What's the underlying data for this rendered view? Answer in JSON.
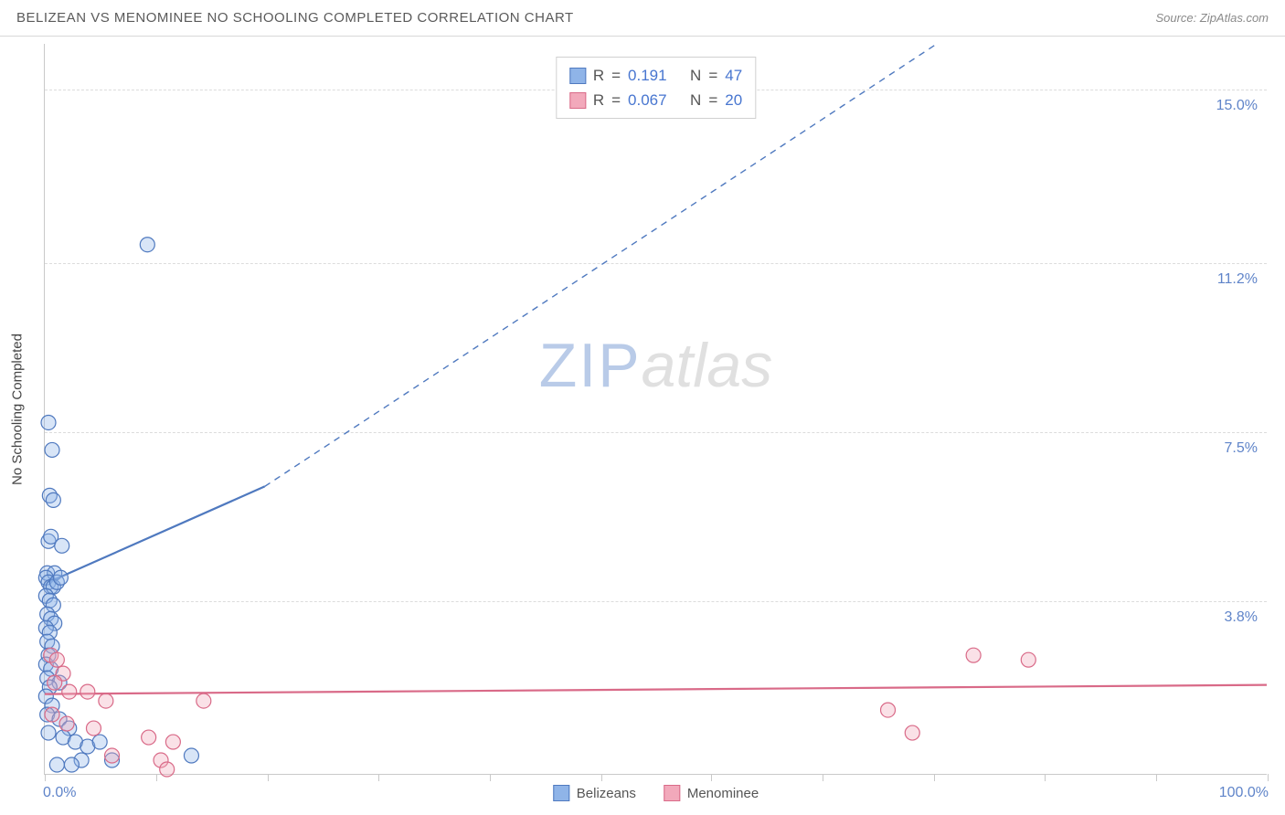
{
  "header": {
    "title": "BELIZEAN VS MENOMINEE NO SCHOOLING COMPLETED CORRELATION CHART",
    "source": "Source: ZipAtlas.com"
  },
  "chart": {
    "type": "scatter",
    "ylabel": "No Schooling Completed",
    "xlim": [
      0,
      100
    ],
    "ylim": [
      0,
      16
    ],
    "x_axis": {
      "label_left": "0.0%",
      "label_right": "100.0%",
      "tick_positions": [
        0,
        9.1,
        18.2,
        27.3,
        36.4,
        45.5,
        54.5,
        63.6,
        72.7,
        81.8,
        90.9,
        100
      ]
    },
    "y_gridlines": [
      {
        "value": 3.8,
        "label": "3.8%"
      },
      {
        "value": 7.5,
        "label": "7.5%"
      },
      {
        "value": 11.2,
        "label": "11.2%"
      },
      {
        "value": 15.0,
        "label": "15.0%"
      }
    ],
    "watermark": {
      "part1": "ZIP",
      "part2": "atlas"
    },
    "background_color": "#ffffff",
    "grid_color": "#dcdcdc",
    "axis_color": "#c9c9c9",
    "tick_label_color": "#5f84c9",
    "marker_radius": 8,
    "marker_stroke_width": 1.2,
    "marker_fill_opacity": 0.35,
    "series": [
      {
        "name": "Belizeans",
        "fill_color": "#8fb4e8",
        "stroke_color": "#4f79bf",
        "r_value": "0.191",
        "n_value": "47",
        "trend_solid": {
          "x1": 0.3,
          "y1": 4.2,
          "x2": 18,
          "y2": 6.3
        },
        "trend_dashed": {
          "x1": 18,
          "y1": 6.3,
          "x2": 73,
          "y2": 16.0
        },
        "points": [
          [
            0.3,
            7.7
          ],
          [
            0.6,
            7.1
          ],
          [
            0.4,
            6.1
          ],
          [
            0.7,
            6.0
          ],
          [
            0.3,
            5.1
          ],
          [
            0.5,
            5.2
          ],
          [
            1.4,
            5.0
          ],
          [
            0.2,
            4.4
          ],
          [
            0.8,
            4.4
          ],
          [
            0.1,
            4.3
          ],
          [
            0.3,
            4.2
          ],
          [
            0.5,
            4.1
          ],
          [
            0.7,
            4.1
          ],
          [
            1.0,
            4.2
          ],
          [
            1.3,
            4.3
          ],
          [
            0.1,
            3.9
          ],
          [
            0.4,
            3.8
          ],
          [
            0.7,
            3.7
          ],
          [
            0.2,
            3.5
          ],
          [
            0.5,
            3.4
          ],
          [
            0.8,
            3.3
          ],
          [
            0.1,
            3.2
          ],
          [
            0.4,
            3.1
          ],
          [
            0.2,
            2.9
          ],
          [
            0.6,
            2.8
          ],
          [
            0.3,
            2.6
          ],
          [
            0.1,
            2.4
          ],
          [
            0.5,
            2.3
          ],
          [
            0.2,
            2.1
          ],
          [
            1.2,
            2.0
          ],
          [
            0.4,
            1.9
          ],
          [
            0.1,
            1.7
          ],
          [
            0.6,
            1.5
          ],
          [
            0.2,
            1.3
          ],
          [
            1.2,
            1.2
          ],
          [
            2.0,
            1.0
          ],
          [
            0.3,
            0.9
          ],
          [
            1.5,
            0.8
          ],
          [
            2.5,
            0.7
          ],
          [
            3.5,
            0.6
          ],
          [
            4.5,
            0.7
          ],
          [
            12.0,
            0.4
          ],
          [
            5.5,
            0.3
          ],
          [
            3.0,
            0.3
          ],
          [
            1.0,
            0.2
          ],
          [
            2.2,
            0.2
          ],
          [
            8.4,
            11.6
          ]
        ]
      },
      {
        "name": "Menominee",
        "fill_color": "#f2a9bb",
        "stroke_color": "#d96a88",
        "r_value": "0.067",
        "n_value": "20",
        "trend_solid": {
          "x1": 0,
          "y1": 1.75,
          "x2": 100,
          "y2": 1.95
        },
        "trend_dashed": null,
        "points": [
          [
            0.5,
            2.6
          ],
          [
            1.0,
            2.5
          ],
          [
            1.5,
            2.2
          ],
          [
            0.8,
            2.0
          ],
          [
            2.0,
            1.8
          ],
          [
            3.5,
            1.8
          ],
          [
            5.0,
            1.6
          ],
          [
            13.0,
            1.6
          ],
          [
            0.6,
            1.3
          ],
          [
            1.8,
            1.1
          ],
          [
            4.0,
            1.0
          ],
          [
            8.5,
            0.8
          ],
          [
            10.5,
            0.7
          ],
          [
            5.5,
            0.4
          ],
          [
            9.5,
            0.3
          ],
          [
            10.0,
            0.1
          ],
          [
            71.0,
            0.9
          ],
          [
            69.0,
            1.4
          ],
          [
            76.0,
            2.6
          ],
          [
            80.5,
            2.5
          ]
        ]
      }
    ],
    "legend_stats": {
      "r_label": "R",
      "n_label": "N",
      "eq": "="
    },
    "legend_bottom": [
      {
        "label": "Belizeans",
        "fill": "#8fb4e8",
        "stroke": "#4f79bf"
      },
      {
        "label": "Menominee",
        "fill": "#f2a9bb",
        "stroke": "#d96a88"
      }
    ]
  }
}
